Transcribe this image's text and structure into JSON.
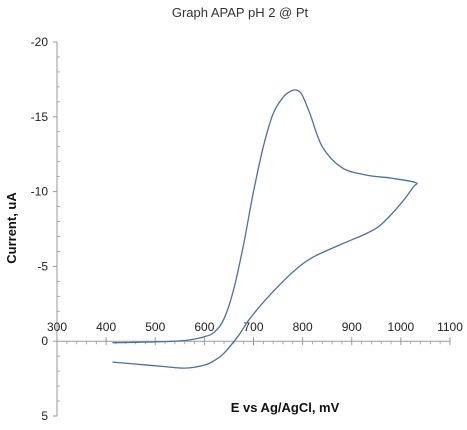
{
  "chart_data": {
    "type": "line",
    "title": "Graph APAP pH 2 @ Pt",
    "xlabel": "E vs Ag/AgCl, mV",
    "ylabel": "Current, uA",
    "xlim": [
      300,
      1100
    ],
    "ylim": [
      5,
      -20
    ],
    "y_axis_inverted": true,
    "x_ticks": [
      300,
      400,
      500,
      600,
      700,
      800,
      900,
      1000,
      1100
    ],
    "x_tick_labels": [
      "300",
      "400",
      "500",
      "600",
      "700",
      "800",
      "900",
      "1000",
      "1100"
    ],
    "y_ticks": [
      -20,
      -15,
      -10,
      -5,
      0,
      5
    ],
    "y_tick_labels": [
      "-20",
      "-15",
      "-10",
      "-5",
      "0",
      "5"
    ],
    "grid": false,
    "legend": "none",
    "series": [
      {
        "color": "#4a6fa5",
        "x": [
          413,
          500,
          560,
          600,
          620,
          640,
          660,
          680,
          700,
          720,
          740,
          760,
          775,
          785,
          793,
          800,
          815,
          840,
          880,
          930,
          980,
          1030,
          1025,
          1000,
          960,
          930,
          880,
          820,
          790,
          760,
          720,
          690,
          670,
          640,
          620,
          600,
          560,
          520,
          450,
          413
        ],
        "y": [
          0.1,
          0.05,
          -0.05,
          -0.3,
          -0.6,
          -1.5,
          -3.5,
          -6.5,
          -10,
          -13,
          -15.2,
          -16.3,
          -16.7,
          -16.8,
          -16.7,
          -16.4,
          -15.2,
          -13,
          -11.6,
          -11.1,
          -10.9,
          -10.6,
          -10.3,
          -9.2,
          -7.8,
          -7.2,
          -6.5,
          -5.6,
          -4.9,
          -4.0,
          -2.6,
          -1.4,
          -0.4,
          0.8,
          1.3,
          1.6,
          1.8,
          1.7,
          1.5,
          1.4
        ]
      }
    ]
  }
}
